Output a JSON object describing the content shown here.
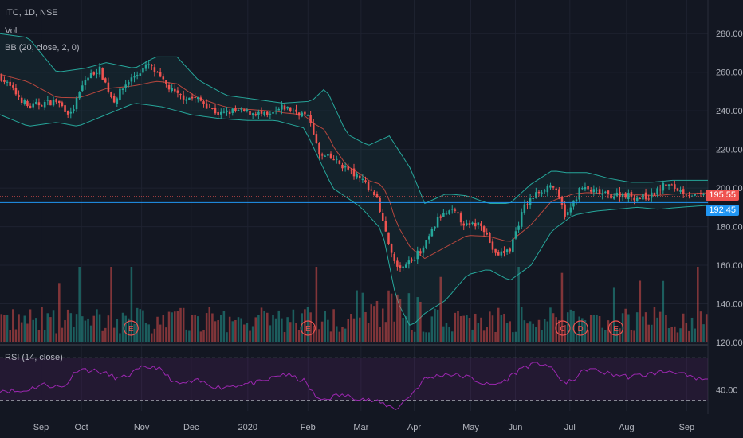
{
  "header": {
    "symbol": "ITC, 1D, NSE",
    "vol_label": "Vol",
    "bb_label": "BB (20, close, 2, 0)"
  },
  "rsi_label": "RSI (14, close)",
  "colors": {
    "background": "#131722",
    "grid": "#1e2230",
    "up": "#26a69a",
    "down": "#ef5350",
    "bb": "#26a69a",
    "basis": "#b7473e",
    "rsi": "#9c27b0",
    "hline": "#2196f3",
    "text": "#b2b5be"
  },
  "price_labels": {
    "last": "195.55",
    "line": "192.45"
  },
  "price_axis_ticks": [
    "280.00",
    "260.00",
    "240.00",
    "220.00",
    "200.00",
    "180.00",
    "160.00",
    "140.00",
    "120.00"
  ],
  "rsi_axis_ticks": [
    "40.00"
  ],
  "time_labels": [
    "Sep",
    "Oct",
    "Nov",
    "Dec",
    "2020",
    "Feb",
    "Mar",
    "Apr",
    "May",
    "Jun",
    "Jul",
    "Aug",
    "Sep"
  ],
  "event_markers": [
    {
      "label": "E",
      "month": "Oct"
    },
    {
      "label": "E",
      "month": "Feb"
    },
    {
      "label": "C",
      "month": "Jun-Jul"
    },
    {
      "label": "D",
      "month": "Jul"
    },
    {
      "label": "E",
      "month": "Aug"
    }
  ],
  "chart_data": {
    "type": "candlestick",
    "ylim": [
      120,
      290
    ],
    "rsi_ylim": [
      20,
      80
    ],
    "horizontal_line": 192.45,
    "last_price": 195.55,
    "keypoints": [
      {
        "pos": 0.0,
        "price": 258
      },
      {
        "pos": 0.02,
        "price": 250
      },
      {
        "pos": 0.04,
        "price": 242
      },
      {
        "pos": 0.06,
        "price": 244
      },
      {
        "pos": 0.08,
        "price": 245
      },
      {
        "pos": 0.1,
        "price": 238
      },
      {
        "pos": 0.12,
        "price": 256
      },
      {
        "pos": 0.14,
        "price": 262
      },
      {
        "pos": 0.16,
        "price": 245
      },
      {
        "pos": 0.18,
        "price": 255
      },
      {
        "pos": 0.21,
        "price": 264
      },
      {
        "pos": 0.23,
        "price": 255
      },
      {
        "pos": 0.25,
        "price": 248
      },
      {
        "pos": 0.28,
        "price": 246
      },
      {
        "pos": 0.31,
        "price": 238
      },
      {
        "pos": 0.33,
        "price": 240
      },
      {
        "pos": 0.36,
        "price": 239
      },
      {
        "pos": 0.38,
        "price": 237
      },
      {
        "pos": 0.4,
        "price": 242
      },
      {
        "pos": 0.43,
        "price": 238
      },
      {
        "pos": 0.44,
        "price": 234
      },
      {
        "pos": 0.45,
        "price": 217
      },
      {
        "pos": 0.47,
        "price": 215
      },
      {
        "pos": 0.49,
        "price": 210
      },
      {
        "pos": 0.51,
        "price": 204
      },
      {
        "pos": 0.53,
        "price": 197
      },
      {
        "pos": 0.55,
        "price": 170
      },
      {
        "pos": 0.56,
        "price": 158
      },
      {
        "pos": 0.58,
        "price": 162
      },
      {
        "pos": 0.6,
        "price": 170
      },
      {
        "pos": 0.62,
        "price": 185
      },
      {
        "pos": 0.64,
        "price": 188
      },
      {
        "pos": 0.66,
        "price": 180
      },
      {
        "pos": 0.68,
        "price": 182
      },
      {
        "pos": 0.7,
        "price": 165
      },
      {
        "pos": 0.72,
        "price": 168
      },
      {
        "pos": 0.74,
        "price": 190
      },
      {
        "pos": 0.76,
        "price": 198
      },
      {
        "pos": 0.78,
        "price": 202
      },
      {
        "pos": 0.8,
        "price": 185
      },
      {
        "pos": 0.82,
        "price": 200
      },
      {
        "pos": 0.84,
        "price": 198
      },
      {
        "pos": 0.86,
        "price": 196
      },
      {
        "pos": 0.88,
        "price": 197
      },
      {
        "pos": 0.9,
        "price": 195
      },
      {
        "pos": 0.92,
        "price": 196
      },
      {
        "pos": 0.94,
        "price": 202
      },
      {
        "pos": 0.96,
        "price": 199
      },
      {
        "pos": 0.98,
        "price": 196
      },
      {
        "pos": 1.0,
        "price": 195.5
      }
    ],
    "bb_upper": [
      {
        "pos": 0.0,
        "price": 280
      },
      {
        "pos": 0.04,
        "price": 278
      },
      {
        "pos": 0.08,
        "price": 260
      },
      {
        "pos": 0.12,
        "price": 262
      },
      {
        "pos": 0.15,
        "price": 265
      },
      {
        "pos": 0.19,
        "price": 262
      },
      {
        "pos": 0.22,
        "price": 268
      },
      {
        "pos": 0.25,
        "price": 268
      },
      {
        "pos": 0.28,
        "price": 256
      },
      {
        "pos": 0.32,
        "price": 248
      },
      {
        "pos": 0.36,
        "price": 246
      },
      {
        "pos": 0.4,
        "price": 244
      },
      {
        "pos": 0.44,
        "price": 245
      },
      {
        "pos": 0.46,
        "price": 252
      },
      {
        "pos": 0.49,
        "price": 228
      },
      {
        "pos": 0.52,
        "price": 222
      },
      {
        "pos": 0.55,
        "price": 227
      },
      {
        "pos": 0.58,
        "price": 210
      },
      {
        "pos": 0.6,
        "price": 192
      },
      {
        "pos": 0.63,
        "price": 197
      },
      {
        "pos": 0.66,
        "price": 196
      },
      {
        "pos": 0.69,
        "price": 192
      },
      {
        "pos": 0.72,
        "price": 192
      },
      {
        "pos": 0.75,
        "price": 202
      },
      {
        "pos": 0.78,
        "price": 209
      },
      {
        "pos": 0.8,
        "price": 208
      },
      {
        "pos": 0.83,
        "price": 208
      },
      {
        "pos": 0.86,
        "price": 205
      },
      {
        "pos": 0.89,
        "price": 203
      },
      {
        "pos": 0.92,
        "price": 203
      },
      {
        "pos": 0.95,
        "price": 204
      },
      {
        "pos": 1.0,
        "price": 204
      }
    ],
    "bb_lower": [
      {
        "pos": 0.0,
        "price": 238
      },
      {
        "pos": 0.04,
        "price": 232
      },
      {
        "pos": 0.08,
        "price": 234
      },
      {
        "pos": 0.11,
        "price": 232
      },
      {
        "pos": 0.15,
        "price": 238
      },
      {
        "pos": 0.19,
        "price": 244
      },
      {
        "pos": 0.23,
        "price": 242
      },
      {
        "pos": 0.27,
        "price": 238
      },
      {
        "pos": 0.31,
        "price": 236
      },
      {
        "pos": 0.35,
        "price": 235
      },
      {
        "pos": 0.39,
        "price": 235
      },
      {
        "pos": 0.43,
        "price": 231
      },
      {
        "pos": 0.47,
        "price": 200
      },
      {
        "pos": 0.51,
        "price": 190
      },
      {
        "pos": 0.54,
        "price": 178
      },
      {
        "pos": 0.56,
        "price": 142
      },
      {
        "pos": 0.58,
        "price": 128
      },
      {
        "pos": 0.6,
        "price": 135
      },
      {
        "pos": 0.63,
        "price": 142
      },
      {
        "pos": 0.66,
        "price": 155
      },
      {
        "pos": 0.69,
        "price": 158
      },
      {
        "pos": 0.72,
        "price": 152
      },
      {
        "pos": 0.75,
        "price": 160
      },
      {
        "pos": 0.78,
        "price": 178
      },
      {
        "pos": 0.81,
        "price": 186
      },
      {
        "pos": 0.84,
        "price": 188
      },
      {
        "pos": 0.87,
        "price": 189
      },
      {
        "pos": 0.9,
        "price": 190
      },
      {
        "pos": 0.93,
        "price": 189
      },
      {
        "pos": 0.96,
        "price": 190
      },
      {
        "pos": 1.0,
        "price": 191
      }
    ],
    "rsi": [
      {
        "pos": 0.0,
        "price": 40
      },
      {
        "pos": 0.03,
        "price": 38
      },
      {
        "pos": 0.06,
        "price": 45
      },
      {
        "pos": 0.09,
        "price": 42
      },
      {
        "pos": 0.11,
        "price": 60
      },
      {
        "pos": 0.14,
        "price": 57
      },
      {
        "pos": 0.17,
        "price": 50
      },
      {
        "pos": 0.2,
        "price": 60
      },
      {
        "pos": 0.22,
        "price": 62
      },
      {
        "pos": 0.25,
        "price": 45
      },
      {
        "pos": 0.28,
        "price": 48
      },
      {
        "pos": 0.31,
        "price": 42
      },
      {
        "pos": 0.34,
        "price": 45
      },
      {
        "pos": 0.37,
        "price": 47
      },
      {
        "pos": 0.4,
        "price": 55
      },
      {
        "pos": 0.43,
        "price": 48
      },
      {
        "pos": 0.45,
        "price": 30
      },
      {
        "pos": 0.48,
        "price": 35
      },
      {
        "pos": 0.51,
        "price": 32
      },
      {
        "pos": 0.54,
        "price": 27
      },
      {
        "pos": 0.56,
        "price": 22
      },
      {
        "pos": 0.58,
        "price": 35
      },
      {
        "pos": 0.6,
        "price": 50
      },
      {
        "pos": 0.63,
        "price": 55
      },
      {
        "pos": 0.66,
        "price": 52
      },
      {
        "pos": 0.69,
        "price": 44
      },
      {
        "pos": 0.71,
        "price": 47
      },
      {
        "pos": 0.74,
        "price": 62
      },
      {
        "pos": 0.77,
        "price": 65
      },
      {
        "pos": 0.8,
        "price": 45
      },
      {
        "pos": 0.83,
        "price": 60
      },
      {
        "pos": 0.86,
        "price": 55
      },
      {
        "pos": 0.89,
        "price": 52
      },
      {
        "pos": 0.92,
        "price": 55
      },
      {
        "pos": 0.95,
        "price": 58
      },
      {
        "pos": 0.98,
        "price": 50
      },
      {
        "pos": 1.0,
        "price": 49
      }
    ]
  }
}
